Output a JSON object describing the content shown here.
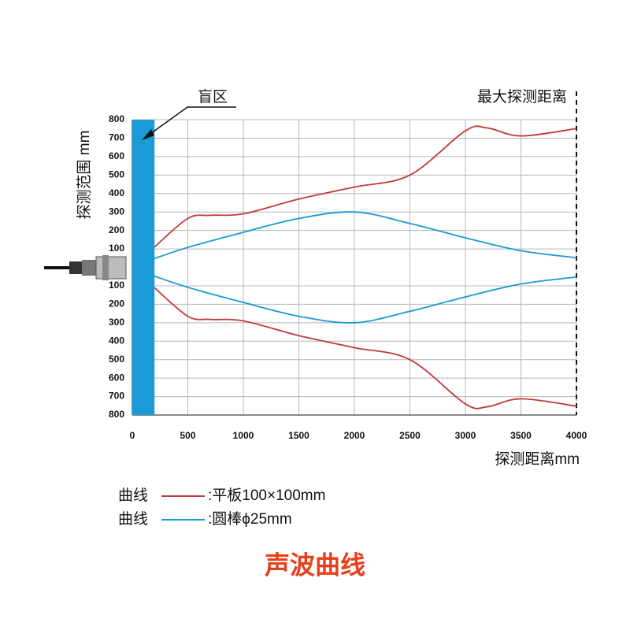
{
  "chart_data": {
    "type": "line",
    "title": "声波曲线",
    "x_title": "探测距离mm",
    "y_title": "探测范围 mm",
    "blind_zone": {
      "label": "盲区",
      "range": [
        0,
        200
      ],
      "color": "#1a9ad6"
    },
    "max_distance": {
      "label": "最大探测距离",
      "x": 4000
    },
    "legend_prefix": "曲线",
    "xlim": [
      0,
      4000
    ],
    "xticks": [
      0,
      500,
      1000,
      1500,
      2000,
      2500,
      3000,
      3500,
      4000
    ],
    "ylim": [
      -800,
      800
    ],
    "yticks": [
      800,
      700,
      600,
      500,
      400,
      300,
      200,
      100,
      {
        "value": -100,
        "label": "100"
      },
      {
        "value": -200,
        "label": "200"
      },
      {
        "value": -300,
        "label": "300"
      },
      {
        "value": -400,
        "label": "400"
      },
      {
        "value": -500,
        "label": "500"
      },
      {
        "value": -600,
        "label": "600"
      },
      {
        "value": -700,
        "label": "700"
      },
      {
        "value": -800,
        "label": "800"
      }
    ],
    "grid": true,
    "series": [
      {
        "name": ":平板100×100mm",
        "color": "#c0393b",
        "x": [
          200,
          500,
          700,
          1000,
          1500,
          2000,
          2500,
          3000,
          3200,
          3500,
          4000
        ],
        "values": [
          110,
          265,
          282,
          290,
          370,
          435,
          500,
          740,
          755,
          712,
          752
        ],
        "lower_values": [
          -110,
          -265,
          -282,
          -290,
          -370,
          -435,
          -500,
          -740,
          -755,
          -712,
          -752
        ]
      },
      {
        "name": ":圆棒ϕ25mm",
        "color": "#1a9ad6",
        "x": [
          200,
          500,
          1000,
          1500,
          2000,
          2500,
          3000,
          3500,
          4000
        ],
        "values": [
          48,
          108,
          190,
          265,
          300,
          238,
          160,
          90,
          52
        ],
        "lower_values": [
          -48,
          -108,
          -190,
          -265,
          -300,
          -238,
          -160,
          -90,
          -52
        ]
      }
    ]
  }
}
